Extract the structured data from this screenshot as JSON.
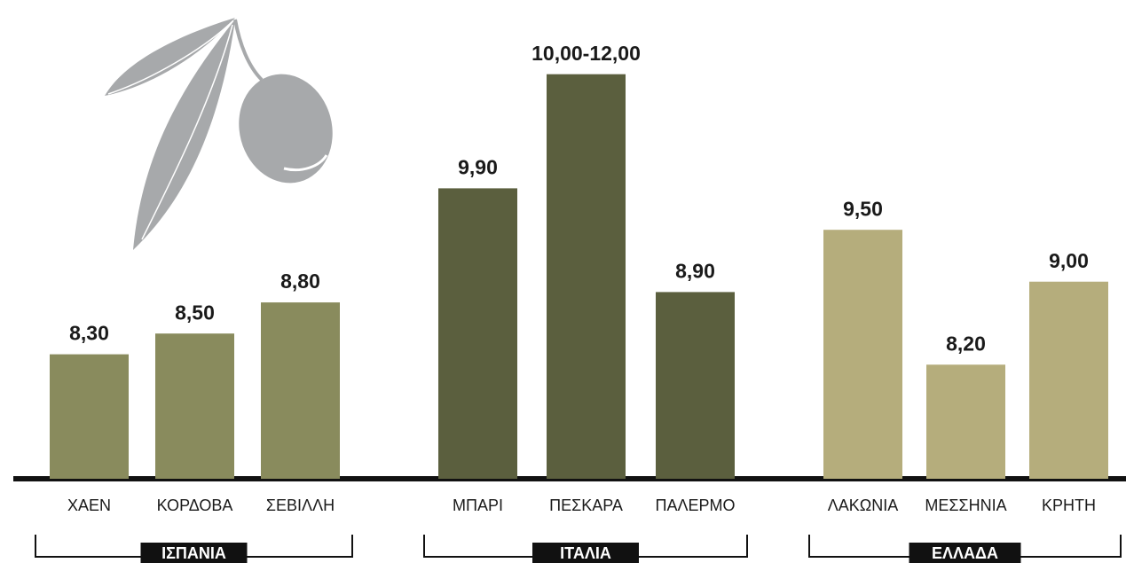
{
  "chart_data": {
    "type": "bar",
    "ylim": [
      7.1,
      11.5
    ],
    "groups": [
      {
        "name": "ΙΣΠΑΝΙΑ",
        "color": "#898b5d",
        "categories": [
          "ΧΑΕΝ",
          "ΚΟΡΔΟΒΑ",
          "ΣΕΒΙΛΛΗ"
        ],
        "values": [
          8.3,
          8.5,
          8.8
        ],
        "value_labels": [
          "8,30",
          "8,50",
          "8,80"
        ]
      },
      {
        "name": "ΙΤΑΛΙΑ",
        "color": "#5b5f3e",
        "categories": [
          "ΜΠΑΡΙ",
          "ΠΕΣΚΑΡΑ",
          "ΠΑΛΕΡΜΟ"
        ],
        "values": [
          9.9,
          [
            10,
            12
          ],
          8.9
        ],
        "value_labels": [
          "9,90",
          "10,00-12,00",
          "8,90"
        ]
      },
      {
        "name": "ΕΛΛΑΔΑ",
        "color": "#b5ad7c",
        "categories": [
          "ΛΑΚΩΝΙΑ",
          "ΜΕΣΣΗΝΙΑ",
          "ΚΡΗΤΗ"
        ],
        "values": [
          9.5,
          8.2,
          9.0
        ],
        "value_labels": [
          "9,50",
          "8,20",
          "9,00"
        ]
      }
    ]
  }
}
